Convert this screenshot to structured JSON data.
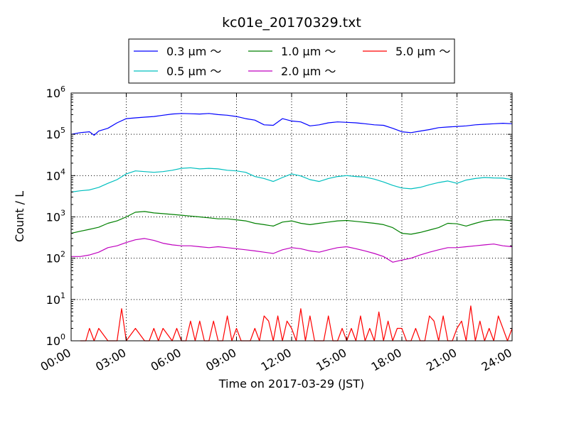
{
  "chart_data": {
    "type": "line",
    "title": "kc01e_20170329.txt",
    "xlabel": "Time on 2017-03-29 (JST)",
    "ylabel": "Count / L",
    "yscale": "log",
    "ylim": [
      1,
      1000000
    ],
    "xlim_hours": [
      0,
      24
    ],
    "x_ticks": [
      "00:00",
      "03:00",
      "06:00",
      "09:00",
      "12:00",
      "15:00",
      "18:00",
      "21:00",
      "24:00"
    ],
    "y_ticks": [
      {
        "base": "10",
        "exp": "0"
      },
      {
        "base": "10",
        "exp": "1"
      },
      {
        "base": "10",
        "exp": "2"
      },
      {
        "base": "10",
        "exp": "3"
      },
      {
        "base": "10",
        "exp": "4"
      },
      {
        "base": "10",
        "exp": "5"
      },
      {
        "base": "10",
        "exp": "6"
      }
    ],
    "grid": true,
    "legend_position": "top-center",
    "series": [
      {
        "name": "0.3 μm ～",
        "color": "#0000ff",
        "x": [
          0,
          0.5,
          1,
          1.25,
          1.5,
          2,
          2.5,
          3,
          3.5,
          4,
          4.5,
          5,
          5.5,
          6,
          6.5,
          7,
          7.5,
          8,
          8.5,
          9,
          9.5,
          10,
          10.5,
          11,
          11.5,
          12,
          12.5,
          13,
          13.5,
          14,
          14.5,
          15,
          15.5,
          16,
          16.5,
          17,
          17.5,
          18,
          18.5,
          19,
          19.5,
          20,
          20.5,
          21,
          21.5,
          22,
          22.5,
          23,
          23.5,
          24
        ],
        "y": [
          100000,
          110000,
          115000,
          95000,
          120000,
          140000,
          190000,
          240000,
          250000,
          260000,
          270000,
          290000,
          310000,
          320000,
          315000,
          310000,
          320000,
          300000,
          290000,
          270000,
          240000,
          220000,
          170000,
          165000,
          240000,
          210000,
          200000,
          160000,
          170000,
          190000,
          200000,
          195000,
          190000,
          180000,
          170000,
          165000,
          140000,
          115000,
          110000,
          120000,
          130000,
          145000,
          150000,
          155000,
          160000,
          170000,
          175000,
          180000,
          185000,
          180000
        ]
      },
      {
        "name": "0.5 μm ～",
        "color": "#00bfbf",
        "x": [
          0,
          0.5,
          1,
          1.5,
          2,
          2.5,
          3,
          3.5,
          4,
          4.5,
          5,
          5.5,
          6,
          6.5,
          7,
          7.5,
          8,
          8.5,
          9,
          9.5,
          10,
          10.5,
          11,
          11.5,
          12,
          12.5,
          13,
          13.5,
          14,
          14.5,
          15,
          15.5,
          16,
          16.5,
          17,
          17.5,
          18,
          18.5,
          19,
          19.5,
          20,
          20.5,
          21,
          21.5,
          22,
          22.5,
          23,
          23.5,
          24
        ],
        "y": [
          4000,
          4300,
          4500,
          5200,
          6500,
          8000,
          11000,
          13000,
          12500,
          12000,
          12500,
          13500,
          15000,
          15500,
          14500,
          15000,
          14500,
          13500,
          13000,
          12000,
          9500,
          8500,
          7200,
          9000,
          11000,
          9800,
          8000,
          7200,
          8500,
          9500,
          10000,
          9500,
          9200,
          8200,
          7000,
          5800,
          5000,
          4800,
          5200,
          6000,
          6800,
          7400,
          6500,
          7800,
          8500,
          9000,
          8800,
          8700,
          8000
        ]
      },
      {
        "name": "1.0 μm ～",
        "color": "#008000",
        "x": [
          0,
          0.5,
          1,
          1.5,
          2,
          2.5,
          3,
          3.5,
          4,
          4.5,
          5,
          5.5,
          6,
          6.5,
          7,
          7.5,
          8,
          8.5,
          9,
          9.5,
          10,
          10.5,
          11,
          11.5,
          12,
          12.5,
          13,
          13.5,
          14,
          14.5,
          15,
          15.5,
          16,
          16.5,
          17,
          17.5,
          18,
          18.5,
          19,
          19.5,
          20,
          20.5,
          21,
          21.5,
          22,
          22.5,
          23,
          23.5,
          24
        ],
        "y": [
          400,
          450,
          500,
          560,
          700,
          800,
          1000,
          1300,
          1350,
          1250,
          1200,
          1150,
          1100,
          1050,
          1000,
          950,
          900,
          900,
          850,
          800,
          700,
          650,
          600,
          750,
          800,
          700,
          650,
          700,
          750,
          800,
          820,
          780,
          740,
          700,
          650,
          550,
          400,
          380,
          420,
          480,
          550,
          700,
          680,
          600,
          700,
          800,
          850,
          850,
          800
        ]
      },
      {
        "name": "2.0 μm ～",
        "color": "#bf00bf",
        "x": [
          0,
          0.5,
          1,
          1.5,
          2,
          2.5,
          3,
          3.5,
          4,
          4.5,
          5,
          5.5,
          6,
          6.5,
          7,
          7.5,
          8,
          8.5,
          9,
          9.5,
          10,
          10.5,
          11,
          11.5,
          12,
          12.5,
          13,
          13.5,
          14,
          14.5,
          15,
          15.5,
          16,
          16.5,
          17,
          17.5,
          18,
          18.5,
          19,
          19.5,
          20,
          20.5,
          21,
          21.5,
          22,
          22.5,
          23,
          23.5,
          24
        ],
        "y": [
          110,
          110,
          120,
          140,
          180,
          200,
          240,
          280,
          300,
          270,
          230,
          210,
          200,
          200,
          190,
          180,
          190,
          180,
          170,
          160,
          150,
          140,
          130,
          160,
          180,
          170,
          150,
          140,
          160,
          180,
          190,
          170,
          150,
          130,
          110,
          80,
          90,
          100,
          120,
          140,
          160,
          180,
          180,
          190,
          200,
          210,
          220,
          200,
          190
        ]
      },
      {
        "name": "5.0 μm ～",
        "color": "#ff0000",
        "x": [
          0.5,
          0.8,
          1,
          1.25,
          1.5,
          2,
          2.5,
          2.75,
          3,
          3.5,
          4,
          4.25,
          4.5,
          4.75,
          5,
          5.5,
          5.75,
          6,
          6.25,
          6.5,
          6.75,
          7,
          7.25,
          7.5,
          7.75,
          8,
          8.25,
          8.5,
          8.75,
          9,
          9.25,
          9.5,
          9.75,
          10,
          10.25,
          10.5,
          10.75,
          11,
          11.25,
          11.5,
          11.75,
          12,
          12.25,
          12.5,
          12.75,
          13,
          13.25,
          13.5,
          13.75,
          14,
          14.25,
          14.5,
          14.75,
          15,
          15.25,
          15.5,
          15.75,
          16,
          16.25,
          16.5,
          16.75,
          17,
          17.25,
          17.5,
          17.75,
          18,
          18.25,
          18.5,
          18.75,
          19,
          19.25,
          19.5,
          19.75,
          20,
          20.25,
          20.5,
          20.75,
          21,
          21.25,
          21.5,
          21.75,
          22,
          22.25,
          22.5,
          22.75,
          23,
          23.25,
          23.5,
          23.75,
          24
        ],
        "y": [
          1,
          1,
          2,
          1,
          2,
          1,
          1,
          6,
          1,
          2,
          1,
          1,
          2,
          1,
          2,
          1,
          2,
          1,
          1,
          3,
          1,
          3,
          1,
          1,
          3,
          1,
          1,
          4,
          1,
          2,
          1,
          1,
          1,
          2,
          1,
          4,
          3,
          1,
          4,
          1,
          3,
          2,
          1,
          6,
          1,
          4,
          1,
          1,
          1,
          4,
          1,
          1,
          2,
          1,
          2,
          1,
          4,
          1,
          2,
          1,
          5,
          1,
          3,
          1,
          2,
          2,
          1,
          1,
          2,
          1,
          1,
          4,
          3,
          1,
          4,
          1,
          1,
          2,
          3,
          1,
          7,
          1,
          3,
          1,
          2,
          1,
          4,
          2,
          1,
          2
        ]
      }
    ]
  }
}
